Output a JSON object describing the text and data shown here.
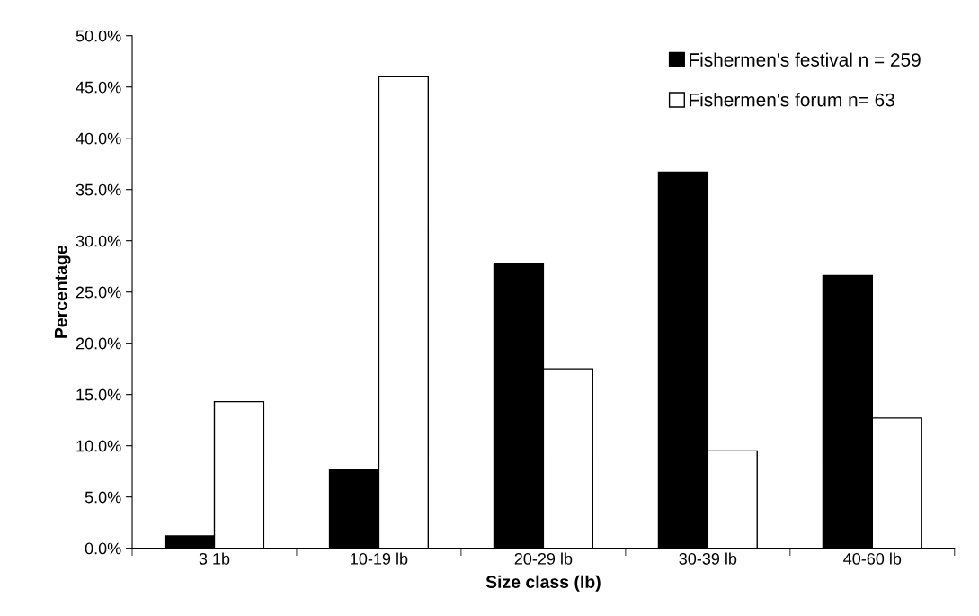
{
  "chart_data": {
    "type": "bar",
    "xlabel": "Size class (lb)",
    "ylabel": "Percentage",
    "categories": [
      "3 1b",
      "10-19 lb",
      "20-29 lb",
      "30-39 lb",
      "40-60 lb"
    ],
    "series": [
      {
        "name": "Fishermen's festival n = 259",
        "color": "#000000",
        "values": [
          1.2,
          7.7,
          27.8,
          36.7,
          26.6
        ]
      },
      {
        "name": "Fishermen's forum n= 63",
        "color": "#ffffff",
        "values": [
          14.3,
          46.0,
          17.5,
          9.5,
          12.7
        ]
      }
    ],
    "ylim": [
      0,
      50
    ],
    "yticks": [
      {
        "value": 0,
        "label": "0.0%"
      },
      {
        "value": 5,
        "label": "5.0%"
      },
      {
        "value": 10,
        "label": "10.0%"
      },
      {
        "value": 15,
        "label": "15.0%"
      },
      {
        "value": 20,
        "label": "20.0%"
      },
      {
        "value": 25,
        "label": "25.0%"
      },
      {
        "value": 30,
        "label": "30.0%"
      },
      {
        "value": 35,
        "label": "35.0%"
      },
      {
        "value": 40,
        "label": "40.0%"
      },
      {
        "value": 45,
        "label": "45.0%"
      },
      {
        "value": 50,
        "label": "50.0%"
      }
    ],
    "grid": false,
    "legend": "top right"
  }
}
